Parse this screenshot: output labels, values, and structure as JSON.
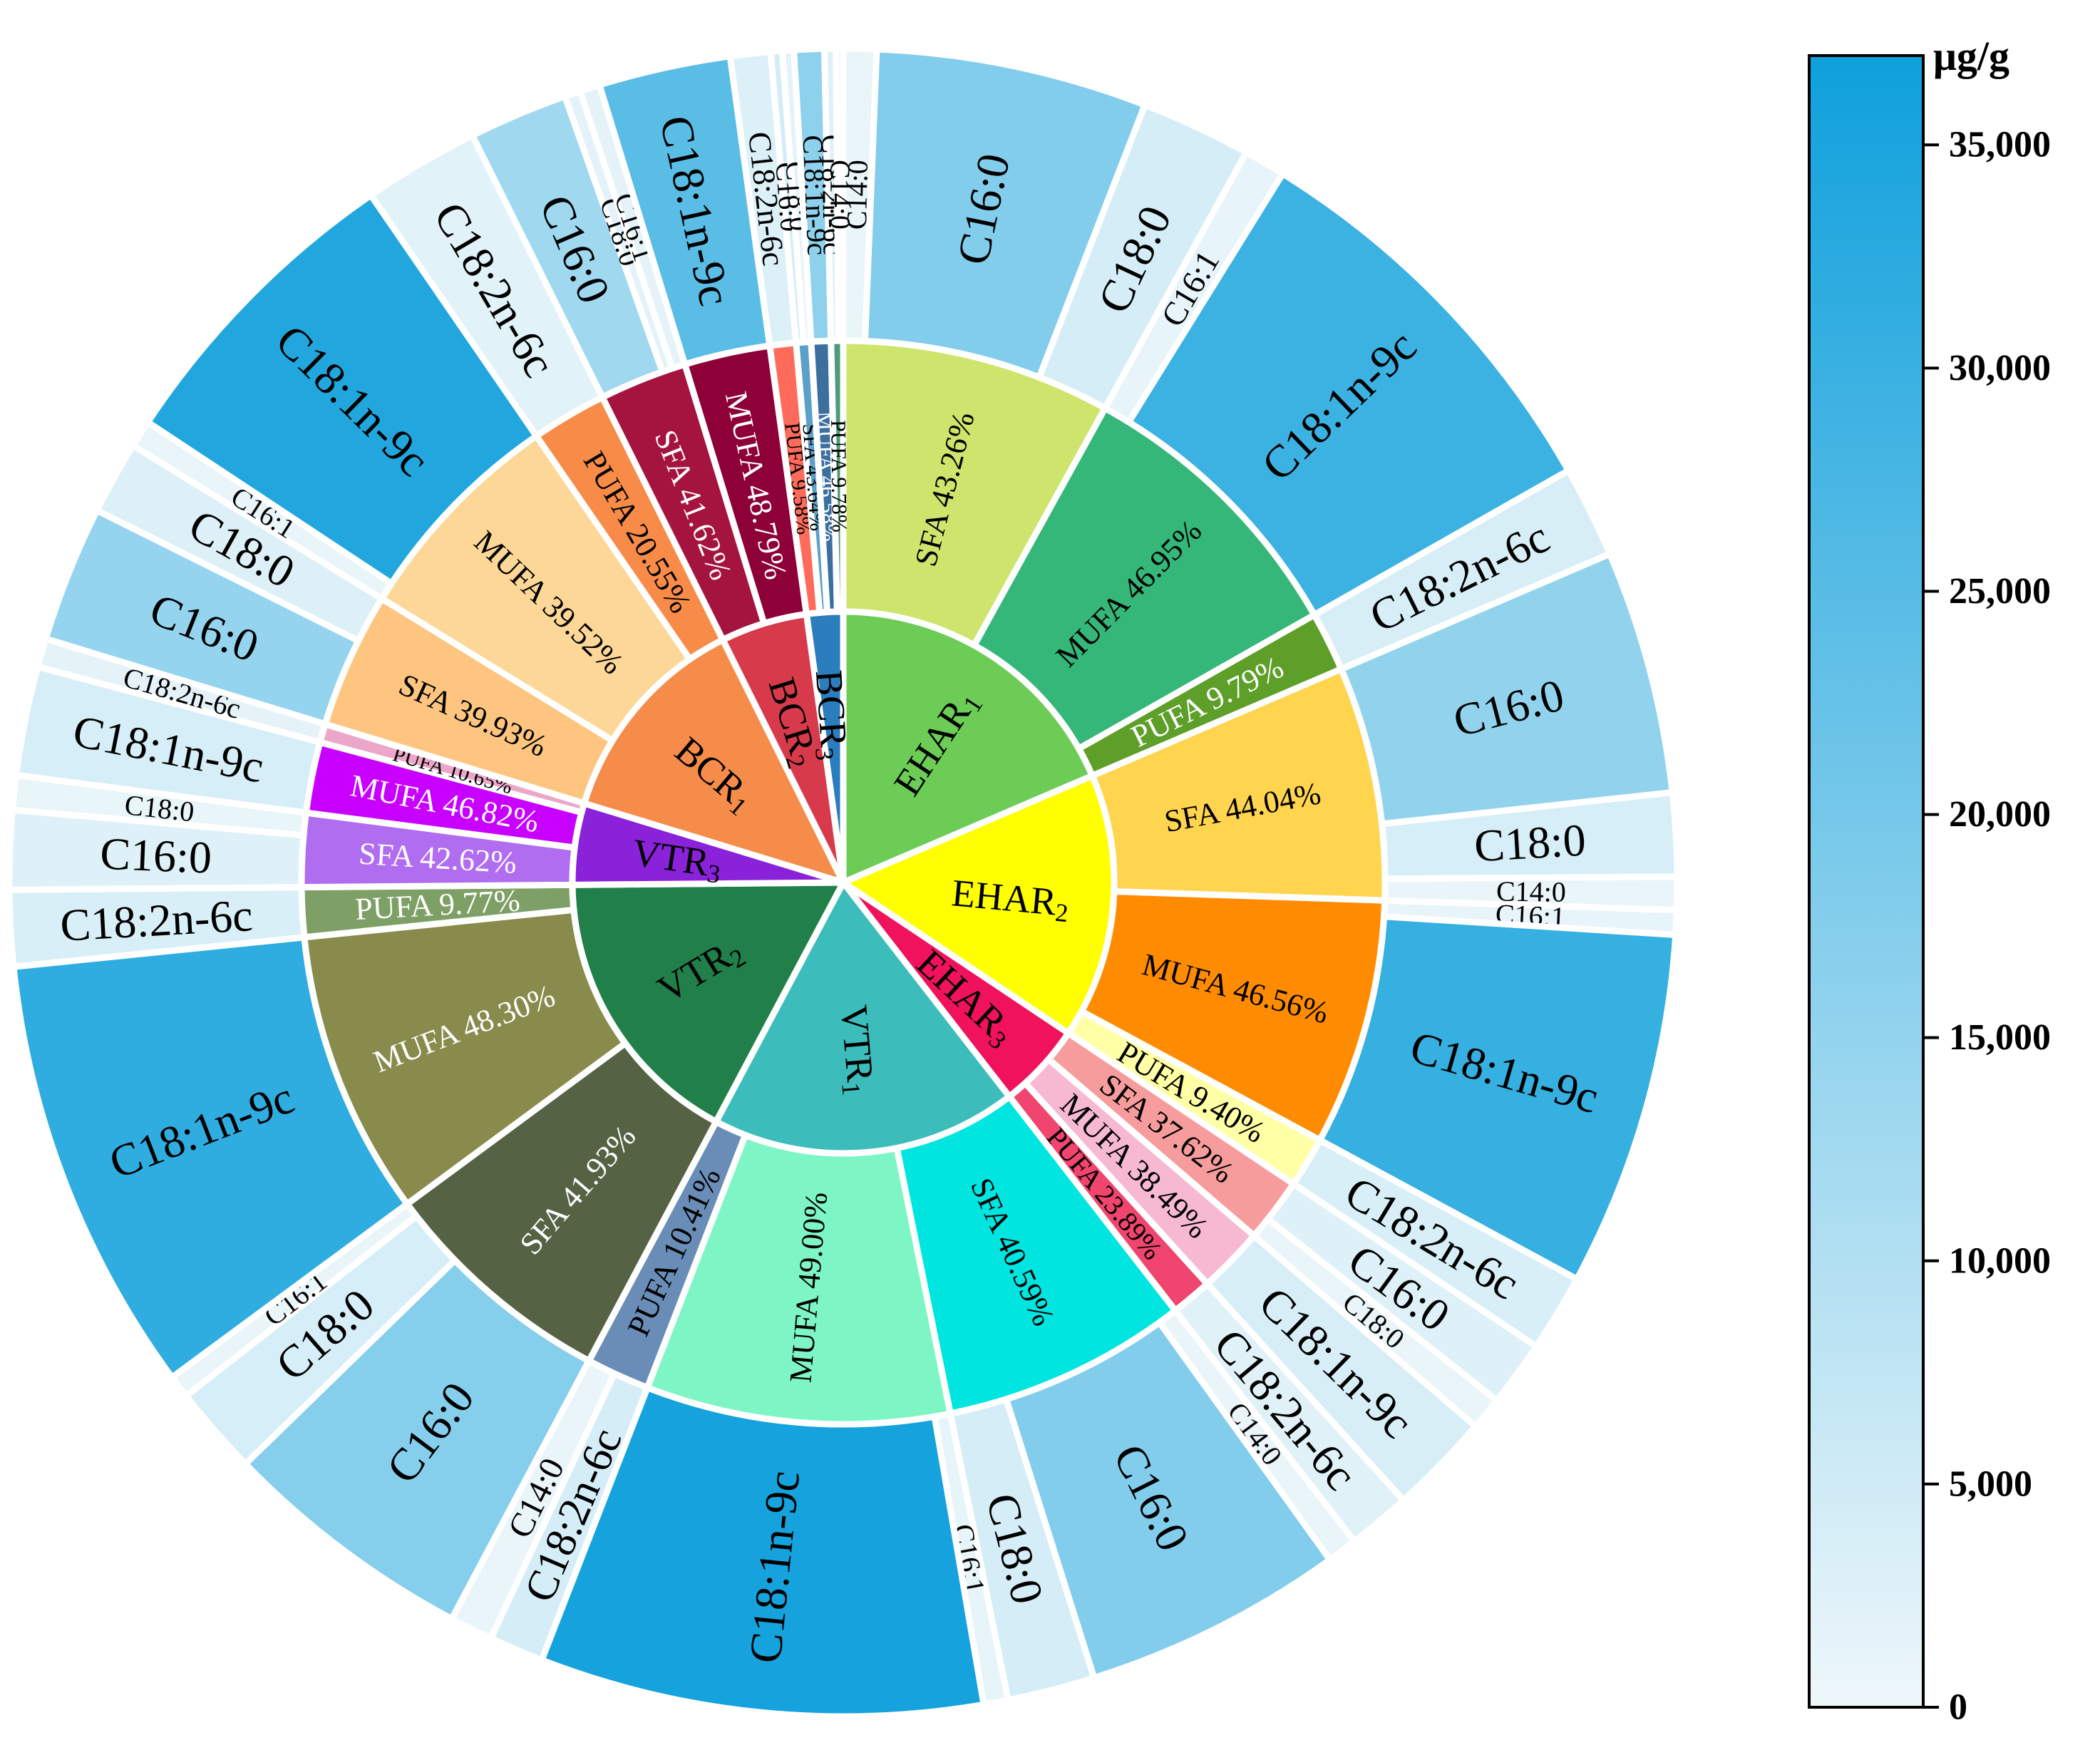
{
  "chart_data": {
    "type": "sunburst",
    "colorbar": {
      "unit": "μg/g",
      "min": 0,
      "max": 37000,
      "ticks": [
        {
          "value": 0,
          "label": "0"
        },
        {
          "value": 5000,
          "label": "5,000"
        },
        {
          "value": 10000,
          "label": "10,000"
        },
        {
          "value": 15000,
          "label": "15,000"
        },
        {
          "value": 20000,
          "label": "20,000"
        },
        {
          "value": 25000,
          "label": "25,000"
        },
        {
          "value": 30000,
          "label": "30,000"
        },
        {
          "value": 35000,
          "label": "35,000"
        }
      ],
      "colors": [
        "#eef7fa",
        "#0fa0dc"
      ]
    },
    "samples": [
      {
        "base": "EHAR",
        "sub": "1",
        "color": "#6ccc55",
        "start": 0,
        "end": 66.8,
        "classes": [
          {
            "name": "SFA",
            "pct": "43.26%",
            "color": "#cde56c",
            "text": "#000000",
            "start": 0,
            "end": 28.9,
            "acids": [
              {
                "name": "C14:0",
                "value": 900,
                "start": 0,
                "end": 2.3
              },
              {
                "name": "C16:0",
                "value": 17800,
                "start": 2.3,
                "end": 21.2
              },
              {
                "name": "C18:0",
                "value": 4200,
                "start": 21.2,
                "end": 28.9
              }
            ]
          },
          {
            "name": "MUFA",
            "pct": "46.95%",
            "color": "#35b779",
            "text": "#000000",
            "start": 28.9,
            "end": 60.4,
            "acids": [
              {
                "name": "C16:1",
                "value": 1100,
                "start": 28.9,
                "end": 31.8
              },
              {
                "name": "C18:1n-9c",
                "value": 29500,
                "start": 31.8,
                "end": 60.4
              }
            ]
          },
          {
            "name": "PUFA",
            "pct": "9.79%",
            "color": "#5d9f28",
            "text": "#ffffff",
            "start": 60.4,
            "end": 66.8,
            "acids": [
              {
                "name": "C18:2n-6c",
                "value": 3800,
                "start": 60.4,
                "end": 66.8
              }
            ]
          }
        ]
      },
      {
        "base": "EHAR",
        "sub": "2",
        "color": "#ffff00",
        "start": 66.8,
        "end": 123.8,
        "classes": [
          {
            "name": "SFA",
            "pct": "44.04%",
            "color": "#ffd44f",
            "text": "#000000",
            "start": 66.8,
            "end": 91.9,
            "acids": [
              {
                "name": "C16:0",
                "value": 15500,
                "start": 66.8,
                "end": 83.8
              },
              {
                "name": "C18:0",
                "value": 4000,
                "start": 83.8,
                "end": 89.6
              },
              {
                "name": "C14:0",
                "value": 700,
                "start": 89.6,
                "end": 91.9
              }
            ]
          },
          {
            "name": "MUFA",
            "pct": "46.56%",
            "color": "#ff8c00",
            "text": "#000000",
            "start": 91.9,
            "end": 118.4,
            "acids": [
              {
                "name": "C16:1",
                "value": 1100,
                "start": 91.9,
                "end": 93.6
              },
              {
                "name": "C18:1n-9c",
                "value": 30500,
                "start": 93.6,
                "end": 118.4
              }
            ]
          },
          {
            "name": "PUFA",
            "pct": "9.40%",
            "color": "#ffffa6",
            "text": "#000000",
            "start": 118.4,
            "end": 123.8,
            "acids": [
              {
                "name": "C18:2n-6c",
                "value": 3600,
                "start": 118.4,
                "end": 123.8
              }
            ]
          }
        ]
      },
      {
        "base": "EHAR",
        "sub": "3",
        "color": "#f0125c",
        "start": 123.8,
        "end": 142.2,
        "classes": [
          {
            "name": "SFA",
            "pct": "37.62%",
            "color": "#f79c9c",
            "text": "#000000",
            "start": 123.8,
            "end": 130.7,
            "acids": [
              {
                "name": "C16:0",
                "value": 2600,
                "start": 123.8,
                "end": 128.4
              },
              {
                "name": "C18:0",
                "value": 900,
                "start": 128.4,
                "end": 130.7
              }
            ]
          },
          {
            "name": "MUFA",
            "pct": "38.49%",
            "color": "#f7b9d2",
            "text": "#000000",
            "start": 130.7,
            "end": 137.8,
            "acids": [
              {
                "name": "C18:1n-9c",
                "value": 3800,
                "start": 130.7,
                "end": 137.8
              }
            ]
          },
          {
            "name": "PUFA",
            "pct": "23.89%",
            "color": "#f0456e",
            "text": "#000000",
            "start": 137.8,
            "end": 142.2,
            "acids": [
              {
                "name": "C18:2n-6c",
                "value": 2300,
                "start": 137.8,
                "end": 142.2
              }
            ]
          }
        ]
      },
      {
        "base": "VTR",
        "sub": "1",
        "color": "#3cbdbb",
        "start": 142.2,
        "end": 208.0,
        "classes": [
          {
            "name": "SFA",
            "pct": "40.59%",
            "color": "#00e5e0",
            "text": "#000000",
            "start": 142.2,
            "end": 168.6,
            "acids": [
              {
                "name": "C14:0",
                "value": 900,
                "start": 142.2,
                "end": 144.3
              },
              {
                "name": "C16:0",
                "value": 17800,
                "start": 144.3,
                "end": 162.5
              },
              {
                "name": "C18:0",
                "value": 4200,
                "start": 162.5,
                "end": 168.6
              }
            ]
          },
          {
            "name": "MUFA",
            "pct": "49.00%",
            "color": "#7ef5c4",
            "text": "#000000",
            "start": 168.6,
            "end": 201.2,
            "acids": [
              {
                "name": "C16:1",
                "value": 1100,
                "start": 168.6,
                "end": 170.3
              },
              {
                "name": "C18:1n-9c",
                "value": 35800,
                "start": 170.3,
                "end": 201.2
              }
            ]
          },
          {
            "name": "PUFA",
            "pct": "10.41%",
            "color": "#6a8db7",
            "text": "#000000",
            "start": 201.2,
            "end": 208.0,
            "acids": [
              {
                "name": "C18:2n-6c",
                "value": 4200,
                "start": 201.2,
                "end": 205.0
              },
              {
                "name": "C14:0",
                "value": 700,
                "start": 205.0,
                "end": 208.0
              }
            ]
          }
        ]
      },
      {
        "base": "VTR",
        "sub": "2",
        "color": "#21804a",
        "start": 208.0,
        "end": 269.5,
        "classes": [
          {
            "name": "SFA",
            "pct": "41.93%",
            "color": "#566244",
            "text": "#ffffff",
            "start": 208.0,
            "end": 233.6,
            "acids": [
              {
                "name": "C16:0",
                "value": 17500,
                "start": 208.0,
                "end": 225.8
              },
              {
                "name": "C18:0",
                "value": 4000,
                "start": 225.8,
                "end": 232.0
              },
              {
                "name": "C16:1",
                "value": 700,
                "start": 232.0,
                "end": 233.6
              }
            ]
          },
          {
            "name": "MUFA",
            "pct": "48.30%",
            "color": "#888b4c",
            "text": "#ffffff",
            "start": 233.6,
            "end": 264.2,
            "acids": [
              {
                "name": "C18:1n-9c",
                "value": 31500,
                "start": 233.6,
                "end": 264.2
              }
            ]
          },
          {
            "name": "PUFA",
            "pct": "9.77%",
            "color": "#7ea067",
            "text": "#ffffff",
            "start": 264.2,
            "end": 269.5,
            "acids": [
              {
                "name": "C18:2n-6c",
                "value": 3600,
                "start": 264.2,
                "end": 269.5
              }
            ]
          }
        ]
      },
      {
        "base": "VTR",
        "sub": "3",
        "color": "#8a22d9",
        "start": 269.5,
        "end": 287.0,
        "classes": [
          {
            "name": "SFA",
            "pct": "42.62%",
            "color": "#b06df0",
            "text": "#ffffff",
            "start": 269.5,
            "end": 277.4,
            "acids": [
              {
                "name": "C16:0",
                "value": 2600,
                "start": 269.5,
                "end": 275.0
              },
              {
                "name": "C18:0",
                "value": 1000,
                "start": 275.0,
                "end": 277.4
              }
            ]
          },
          {
            "name": "MUFA",
            "pct": "46.82%",
            "color": "#c800ff",
            "text": "#ffffff",
            "start": 277.4,
            "end": 285.0,
            "acids": [
              {
                "name": "C18:1n-9c",
                "value": 3900,
                "start": 277.4,
                "end": 285.0
              }
            ]
          },
          {
            "name": "PUFA",
            "pct": "10.65%",
            "color": "#eba6c9",
            "text": "#000000",
            "start": 285.0,
            "end": 287.0,
            "acids": [
              {
                "name": "C18:2n-6c",
                "value": 1500,
                "start": 285.0,
                "end": 287.0
              }
            ]
          }
        ]
      },
      {
        "base": "BCR",
        "sub": "1",
        "color": "#f58c4a",
        "start": 287.0,
        "end": 333.6,
        "classes": [
          {
            "name": "SFA",
            "pct": "39.93%",
            "color": "#fdc580",
            "text": "#000000",
            "start": 287.0,
            "end": 301.6,
            "acids": [
              {
                "name": "C16:0",
                "value": 15000,
                "start": 287.0,
                "end": 296.5
              },
              {
                "name": "C18:0",
                "value": 2900,
                "start": 296.5,
                "end": 301.6
              }
            ]
          },
          {
            "name": "MUFA",
            "pct": "39.52%",
            "color": "#fdd798",
            "text": "#000000",
            "start": 301.6,
            "end": 325.5,
            "acids": [
              {
                "name": "C16:1",
                "value": 900,
                "start": 301.6,
                "end": 303.5
              },
              {
                "name": "C18:1n-9c",
                "value": 34000,
                "start": 303.5,
                "end": 325.5
              }
            ]
          },
          {
            "name": "PUFA",
            "pct": "20.55%",
            "color": "#f88b48",
            "text": "#000000",
            "start": 325.5,
            "end": 333.6,
            "acids": [
              {
                "name": "C18:2n-6c",
                "value": 2200,
                "start": 325.5,
                "end": 333.6
              }
            ]
          }
        ]
      },
      {
        "base": "BCR",
        "sub": "2",
        "color": "#d73b4b",
        "start": 333.6,
        "end": 352.2,
        "classes": [
          {
            "name": "SFA",
            "pct": "41.62%",
            "color": "#a5133f",
            "text": "#ffffff",
            "start": 333.6,
            "end": 343.0,
            "acids": [
              {
                "name": "C16:0",
                "value": 13000,
                "start": 333.6,
                "end": 340.5
              },
              {
                "name": "C18:0",
                "value": 1800,
                "start": 340.5,
                "end": 341.6
              },
              {
                "name": "C16:1",
                "value": 1500,
                "start": 341.6,
                "end": 343.0
              }
            ]
          },
          {
            "name": "MUFA",
            "pct": "48.79%",
            "color": "#8d0038",
            "text": "#ffffff",
            "start": 343.0,
            "end": 352.2,
            "acids": [
              {
                "name": "C18:1n-9c",
                "value": 24500,
                "start": 343.0,
                "end": 352.2
              }
            ]
          },
          {
            "name": "PUFA",
            "pct": "9.58%",
            "color": "#ff6b5b",
            "text": "#000000",
            "start": 352.2,
            "end": 355.0,
            "acids": [
              {
                "name": "C18:2n-6c",
                "value": 3000,
                "start": 352.2,
                "end": 355.0
              }
            ]
          }
        ]
      },
      {
        "base": "BCR",
        "sub": "3",
        "color": "#2c7dbd",
        "start": 352.2,
        "end": 360,
        "classes": [
          {
            "name": "SFA",
            "pct": "43.64%",
            "color": "#5aa0c8",
            "text": "#000000",
            "start": 355.0,
            "end": 356.6,
            "acids": [
              {
                "name": "C16:0",
                "value": 4500,
                "start": 355.0,
                "end": 355.8
              },
              {
                "name": "C18:0",
                "value": 1500,
                "start": 355.8,
                "end": 356.6
              }
            ]
          },
          {
            "name": "MUFA",
            "pct": "46.58%",
            "color": "#3b6f9e",
            "text": "#ffffff",
            "start": 356.6,
            "end": 358.7,
            "acids": [
              {
                "name": "C18:1n-9c",
                "value": 16000,
                "start": 356.6,
                "end": 358.7
              }
            ]
          },
          {
            "name": "PUFA",
            "pct": "9.78%",
            "color": "#4d9b7e",
            "text": "#000000",
            "start": 358.7,
            "end": 360,
            "acids": [
              {
                "name": "C18:2n-6c",
                "value": 2500,
                "start": 358.7,
                "end": 359.5
              },
              {
                "name": "C14:0",
                "value": 600,
                "start": 359.5,
                "end": 360
              }
            ]
          }
        ]
      }
    ]
  }
}
